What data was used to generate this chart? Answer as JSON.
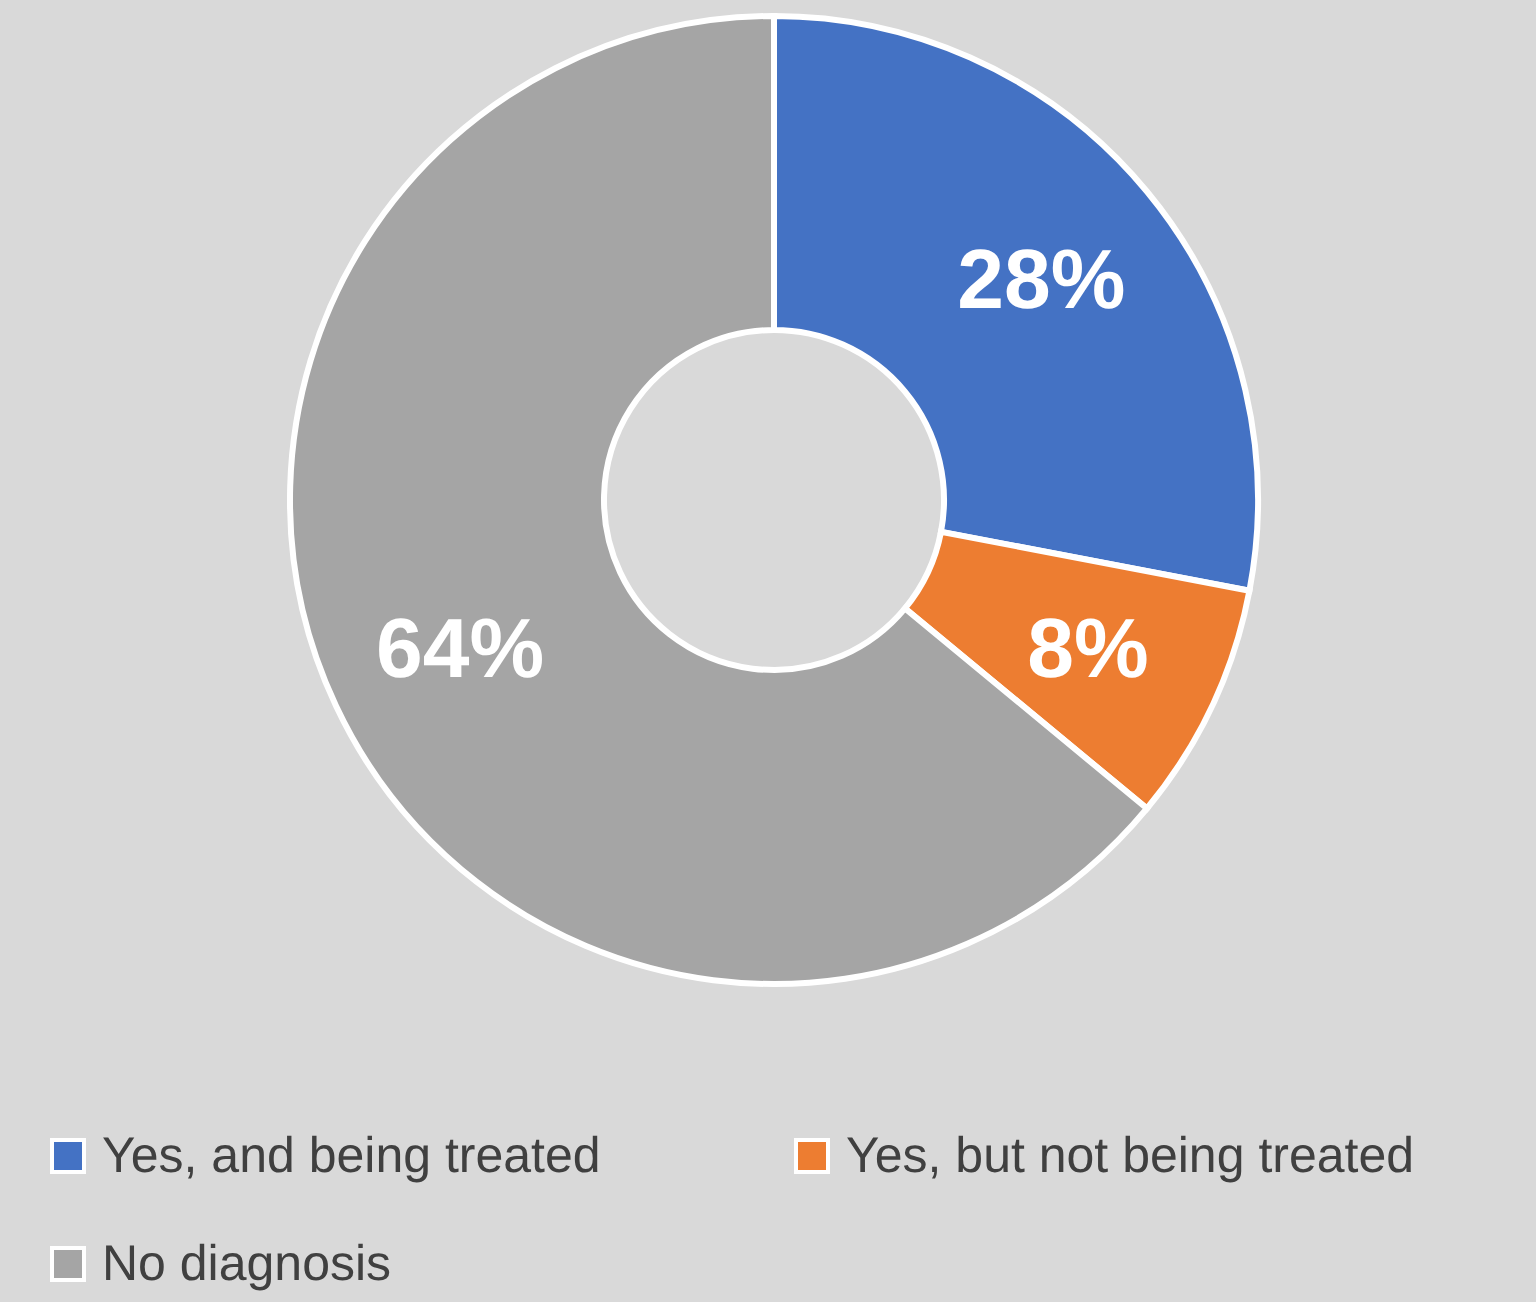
{
  "chart_data": {
    "type": "donut",
    "categories": [
      "Yes, and being treated",
      "Yes, but not being treated",
      "No diagnosis"
    ],
    "values": [
      28,
      8,
      64
    ],
    "colors": [
      "#4472c4",
      "#ed7d31",
      "#a5a5a5"
    ],
    "value_labels": [
      "28%",
      "8%",
      "64%"
    ],
    "legend": "bottom"
  }
}
